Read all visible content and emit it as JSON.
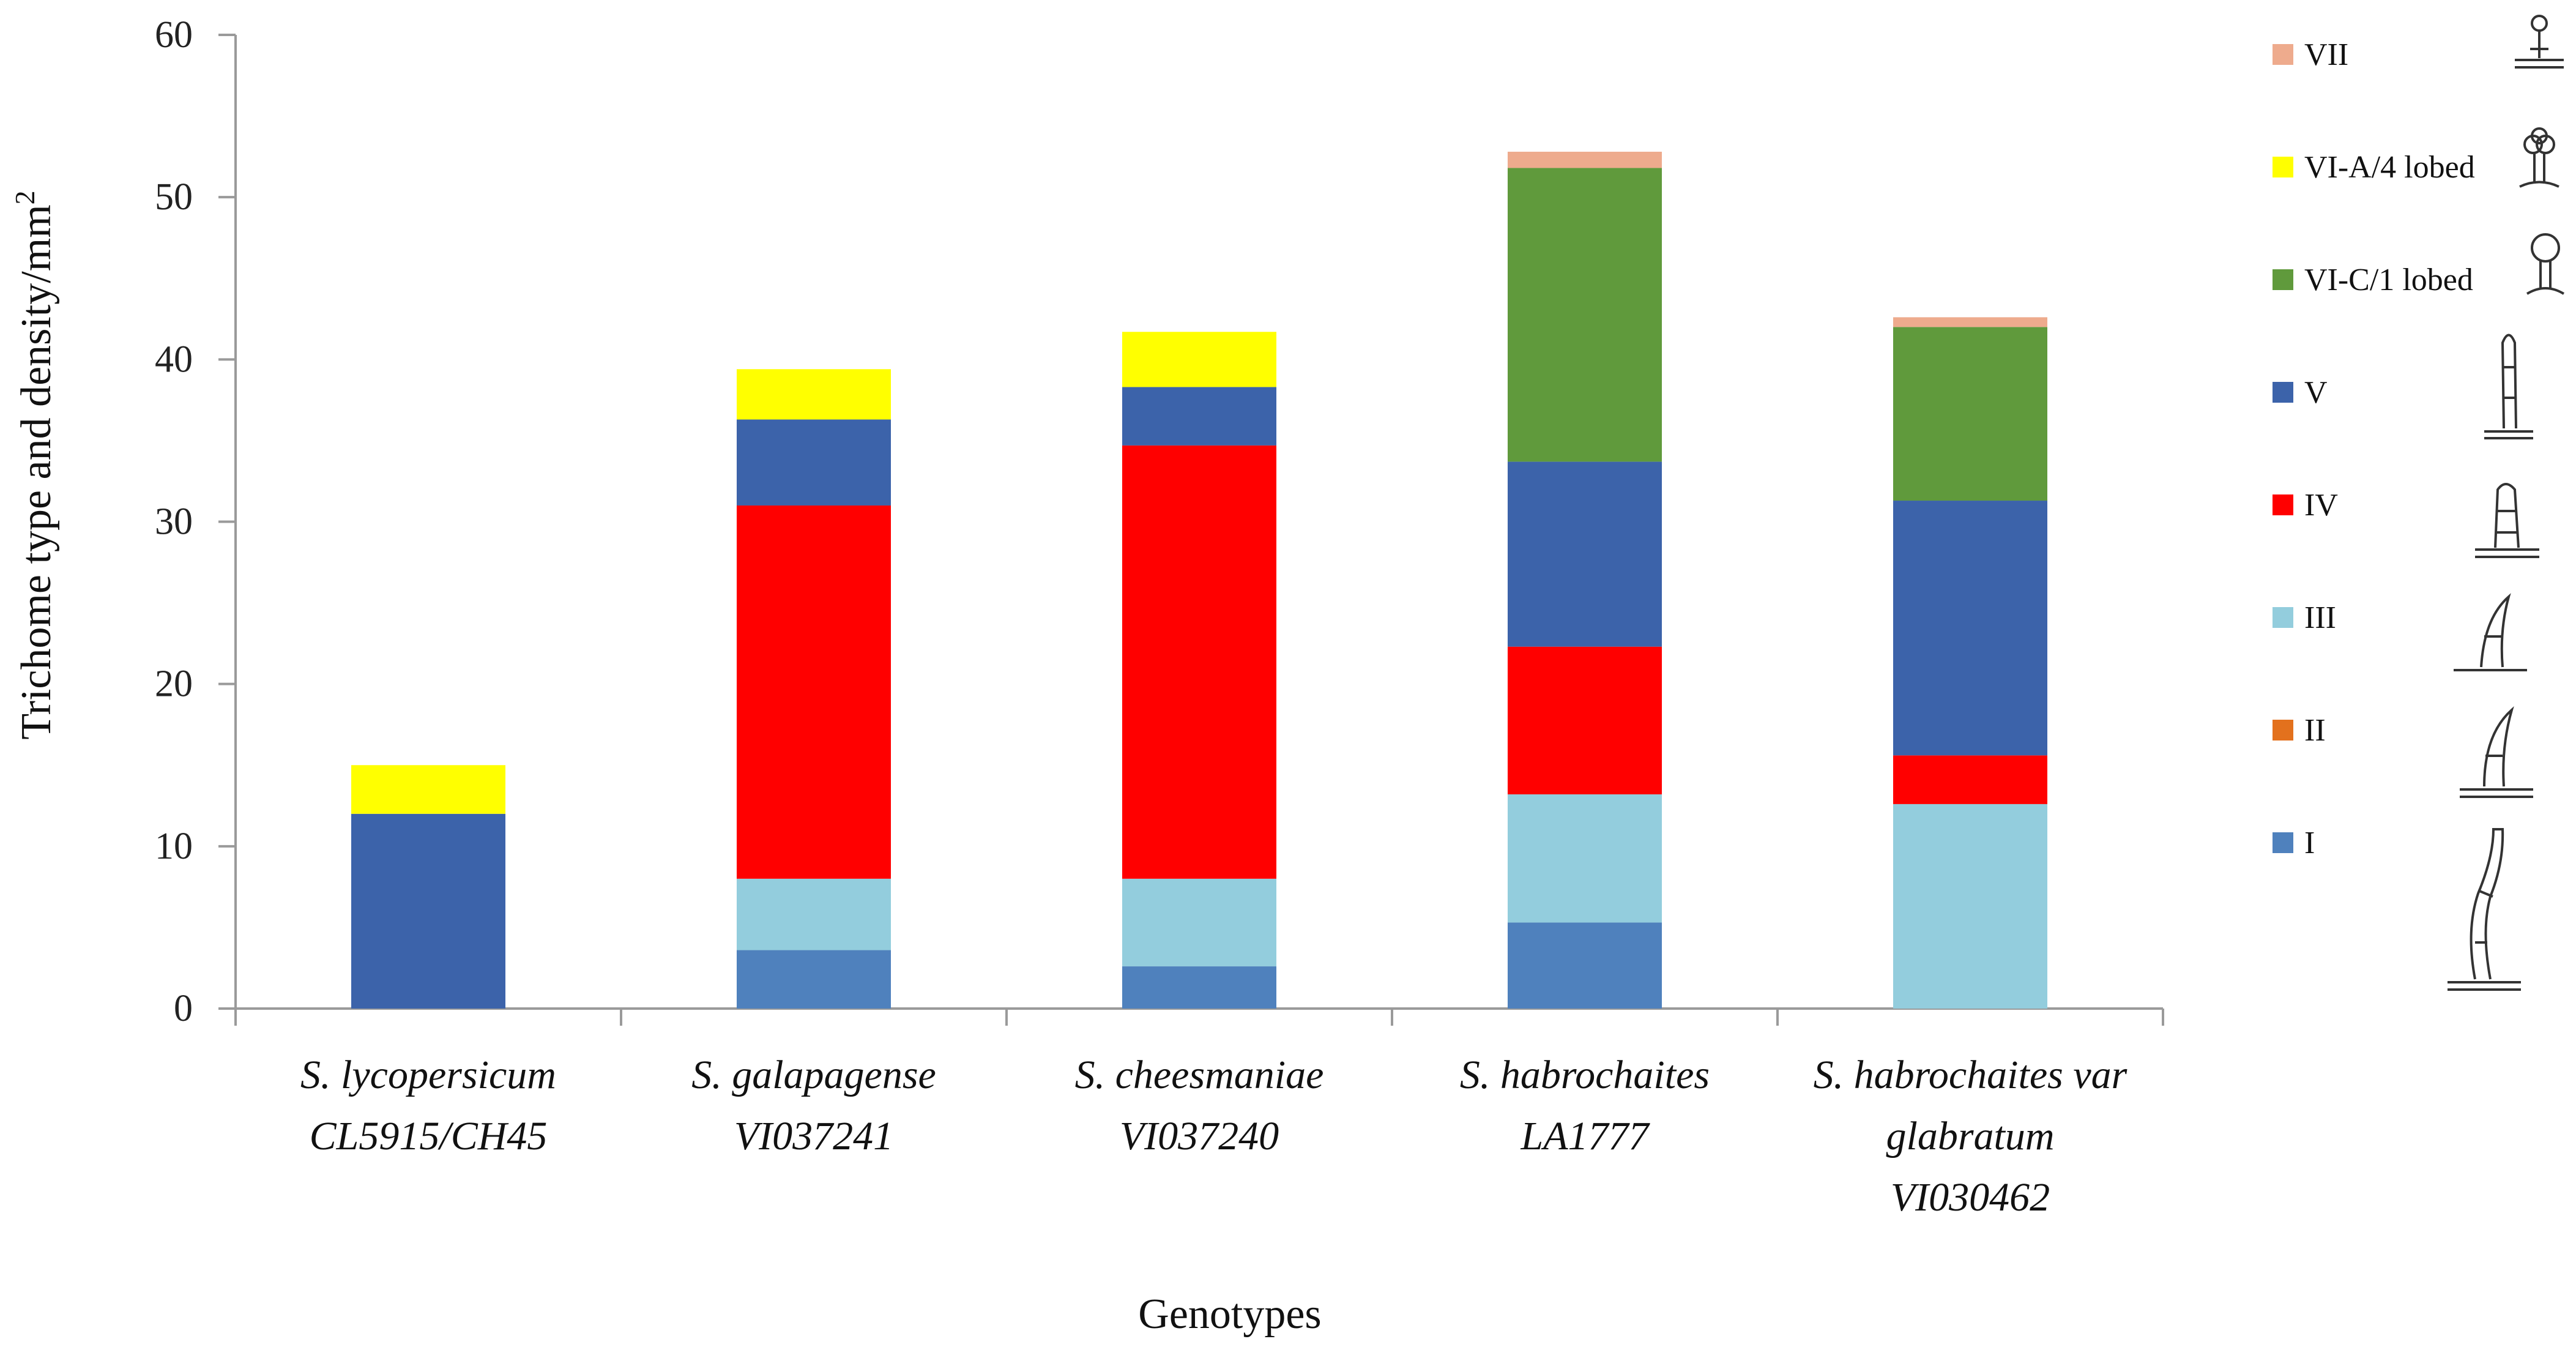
{
  "chart_data": {
    "type": "bar",
    "stacked": true,
    "title": "",
    "xlabel": "Genotypes",
    "ylabel": "Trichome type and density/mm",
    "ylabel_superscript": "2",
    "ylim": [
      0,
      60
    ],
    "yticks": [
      "0",
      "10",
      "20",
      "30",
      "40",
      "50",
      "60"
    ],
    "grid": false,
    "legend_position": "right",
    "categories": [
      [
        "S. lycopersicum",
        "CL5915/CH45"
      ],
      [
        "S. galapagense",
        "VI037241"
      ],
      [
        "S. cheesmaniae",
        "VI037240"
      ],
      [
        "S. habrochaites",
        "LA1777"
      ],
      [
        "S. habrochaites var",
        "glabratum",
        "VI030462"
      ]
    ],
    "series": [
      {
        "name": "I",
        "color": "#4f81bd",
        "values": [
          0,
          3.6,
          2.6,
          5.3,
          0
        ]
      },
      {
        "name": "II",
        "color": "#e3711d",
        "values": [
          0,
          0,
          0,
          0,
          0
        ]
      },
      {
        "name": "III",
        "color": "#93cddd",
        "values": [
          0,
          4.4,
          5.4,
          7.9,
          12.6
        ]
      },
      {
        "name": "IV",
        "color": "#ff0000",
        "values": [
          0,
          23.0,
          26.7,
          9.1,
          3.0
        ]
      },
      {
        "name": "V",
        "color": "#3c63aa",
        "values": [
          12.0,
          5.3,
          3.6,
          11.4,
          15.7
        ]
      },
      {
        "name": "VI-C/1 lobed",
        "color": "#609a3c",
        "values": [
          0,
          0,
          0,
          18.1,
          10.7
        ]
      },
      {
        "name": "VI-A/4 lobed",
        "color": "#ffff00",
        "values": [
          3.0,
          3.1,
          3.4,
          0,
          0
        ]
      },
      {
        "name": "VII",
        "color": "#eeab8d",
        "values": [
          0,
          0,
          0,
          1.0,
          0.6
        ]
      }
    ],
    "legend_order": [
      "VII",
      "VI-A/4 lobed",
      "VI-C/1 lobed",
      "V",
      "IV",
      "III",
      "II",
      "I"
    ]
  }
}
